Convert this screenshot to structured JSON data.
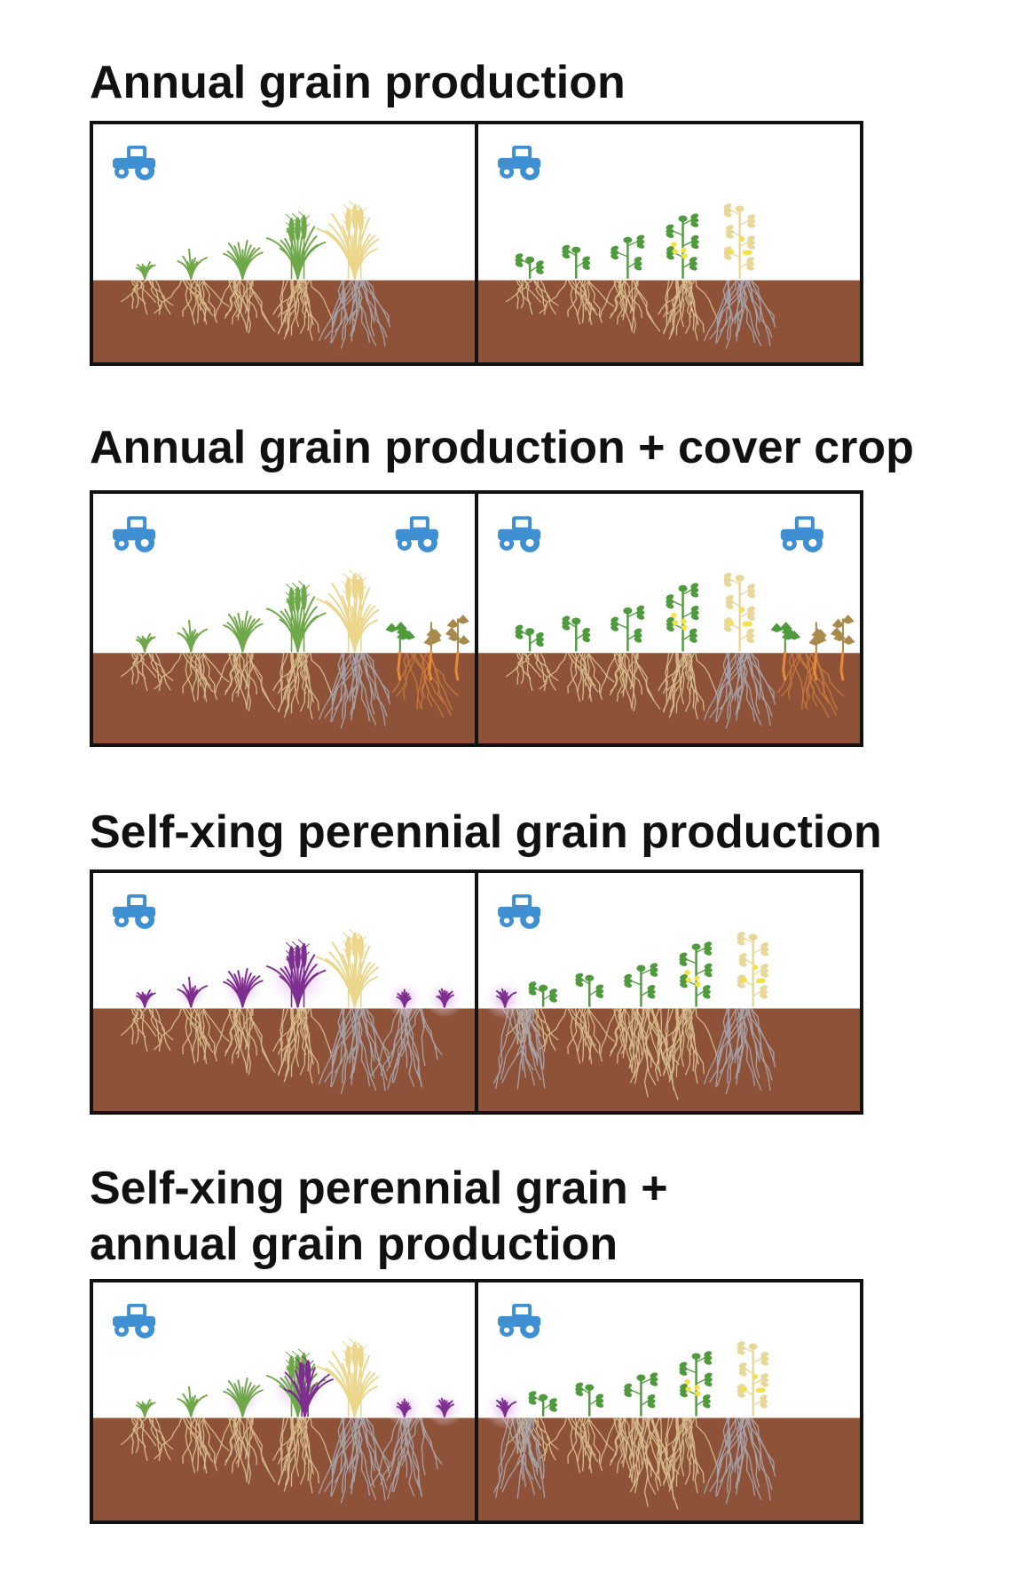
{
  "sections": [
    {
      "title": "Annual grain production",
      "colors": {
        "soil": "#8e5238",
        "tractor": "#3f8fd3",
        "cereal_green": "#6fa84a",
        "cereal_mature": "#ecd68c",
        "legume_green": "#4f9a3c",
        "legume_mature": "#e9d79a",
        "roots": "#d8be8e",
        "old_roots": "#a9a6ad",
        "perennial_purple": "#7d2f8e",
        "cover_crop": "#a98a4d",
        "cover_crop_root": "#e58a3a"
      },
      "panels": [
        {
          "crop": "cereal",
          "tractors": [
            "tractor-icon"
          ],
          "cover_crop": false,
          "perennial": false
        },
        {
          "crop": "legume",
          "tractors": [
            "tractor-icon"
          ],
          "cover_crop": false,
          "perennial": false
        }
      ]
    },
    {
      "title": "Annual grain production + cover crop",
      "panels": [
        {
          "crop": "cereal",
          "tractors": [
            "tractor-icon",
            "tractor-icon"
          ],
          "cover_crop": true,
          "perennial": false
        },
        {
          "crop": "legume",
          "tractors": [
            "tractor-icon",
            "tractor-icon"
          ],
          "cover_crop": true,
          "perennial": false
        }
      ]
    },
    {
      "title": "Self-xing perennial grain production",
      "panels": [
        {
          "crop": "perennial-cereal",
          "tractors": [
            "tractor-icon"
          ],
          "cover_crop": false,
          "perennial": true
        },
        {
          "crop": "legume-with-perennial",
          "tractors": [
            "tractor-icon"
          ],
          "cover_crop": false,
          "perennial": true
        }
      ]
    },
    {
      "title_lines": [
        "Self-xing perennial grain +",
        "annual grain production"
      ],
      "panels": [
        {
          "crop": "mixed-cereal",
          "tractors": [
            "tractor-icon"
          ],
          "cover_crop": false,
          "perennial": true
        },
        {
          "crop": "legume-with-perennial",
          "tractors": [
            "tractor-icon"
          ],
          "cover_crop": false,
          "perennial": true
        }
      ]
    }
  ]
}
